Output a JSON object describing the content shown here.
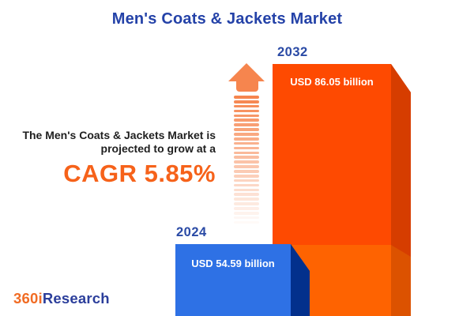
{
  "title": "Men's Coats & Jackets Market",
  "colors": {
    "title_blue": "#2442A8",
    "year_blue": "#2A4AA5",
    "body_text": "#1F1F1F",
    "cagr_orange": "#F6621A",
    "arrow_salmon": "#F6854E",
    "bar_2024_front": "#2E71E5",
    "bar_2024_side": "#03308C",
    "bar_2032_front_upper": "#FE4A01",
    "bar_2032_side_upper": "#D63D00",
    "bar_2032_front_lower": "#FE6301",
    "bar_2032_side_lower": "#DC5200",
    "value_text": "#FFFFFF",
    "background": "#FFFFFF"
  },
  "intro": {
    "line1": "The Men's Coats & Jackets Market is",
    "line2": "projected to grow at a",
    "cagr": "CAGR 5.85%"
  },
  "bars": {
    "b2024": {
      "year": "2024",
      "value_label": "USD 54.59 billion"
    },
    "b2032": {
      "year": "2032",
      "value_label": "USD 86.05 billion"
    }
  },
  "arrow": {
    "icon": "growth-up-arrow-icon",
    "stripe_count": 28
  },
  "logo": {
    "prefix": "360i",
    "suffix": "Research",
    "prefix_color": "#F16C24",
    "suffix_color": "#2B3E9B"
  },
  "chart_data": {
    "type": "bar",
    "categories": [
      "2024",
      "2032"
    ],
    "values": [
      54.59,
      86.05
    ],
    "unit": "USD billion",
    "bar_labels": [
      "USD 54.59 billion",
      "USD 86.05 billion"
    ],
    "title": "Men's Coats & Jackets Market",
    "annotation": "The Men's Coats & Jackets Market is projected to grow at a CAGR 5.85%",
    "cagr_percent": 5.85,
    "xlabel": "",
    "ylabel": "",
    "legend": "none",
    "grid": false,
    "style": "pictorial 3D infographic bars, 2024 blue in front of 2032 orange, baseline at image bottom"
  }
}
